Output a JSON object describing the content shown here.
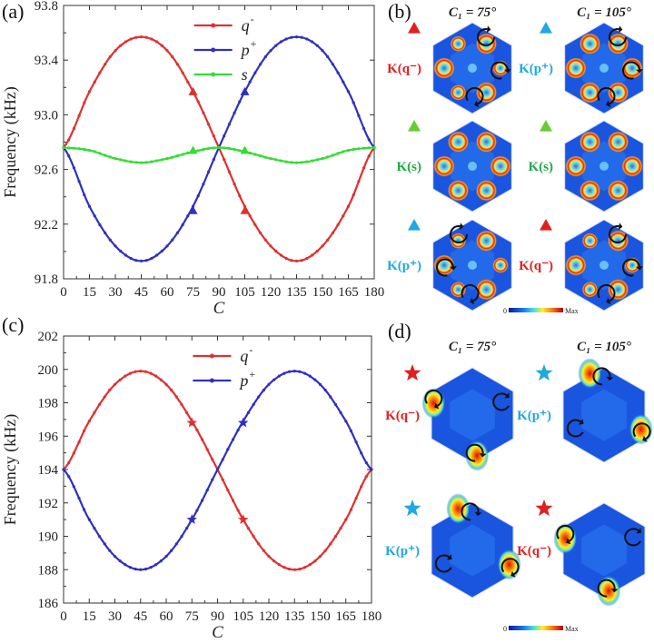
{
  "panel_labels": {
    "a": "(a)",
    "b": "(b)",
    "c": "(c)",
    "d": "(d)"
  },
  "chart_data": [
    {
      "id": "a",
      "type": "line",
      "ylabel": "Frequency (kHz)",
      "xlabel": "C",
      "xlim": [
        0,
        180
      ],
      "ylim": [
        91.8,
        93.8
      ],
      "xticks": [
        0,
        15,
        30,
        45,
        60,
        75,
        90,
        105,
        120,
        135,
        150,
        165,
        180
      ],
      "yticks": [
        91.8,
        92.2,
        92.6,
        93.0,
        93.4,
        93.8
      ],
      "ytick_labels": [
        "91.8",
        "92.2",
        "92.6",
        "93.0",
        "93.4",
        "93.8"
      ],
      "legend_position": "top-center",
      "series": [
        {
          "name": "q",
          "sup": "-",
          "color": "#e03030",
          "x": [
            0,
            15,
            30,
            45,
            60,
            75,
            90,
            105,
            120,
            135,
            150,
            165,
            180
          ],
          "values": [
            92.76,
            93.17,
            93.47,
            93.57,
            93.47,
            93.17,
            92.76,
            92.33,
            92.04,
            91.93,
            92.04,
            92.33,
            92.76
          ]
        },
        {
          "name": "p",
          "sup": "+",
          "color": "#3030c0",
          "x": [
            0,
            15,
            30,
            45,
            60,
            75,
            90,
            105,
            120,
            135,
            150,
            165,
            180
          ],
          "values": [
            92.76,
            92.33,
            92.04,
            91.93,
            92.04,
            92.33,
            92.76,
            93.17,
            93.47,
            93.57,
            93.47,
            93.17,
            92.76
          ]
        },
        {
          "name": "s",
          "sup": "",
          "color": "#33dd33",
          "x": [
            0,
            15,
            30,
            45,
            60,
            75,
            90,
            105,
            120,
            135,
            150,
            165,
            180
          ],
          "values": [
            92.76,
            92.74,
            92.68,
            92.65,
            92.68,
            92.73,
            92.76,
            92.73,
            92.68,
            92.65,
            92.68,
            92.74,
            92.76
          ]
        }
      ],
      "markers": [
        {
          "series": "q",
          "x": 75,
          "y": 93.17,
          "shape": "triangle",
          "color": "#e03030"
        },
        {
          "series": "q",
          "x": 105,
          "y": 92.3,
          "shape": "triangle",
          "color": "#e03030"
        },
        {
          "series": "p",
          "x": 75,
          "y": 92.3,
          "shape": "triangle",
          "color": "#3030c0"
        },
        {
          "series": "p",
          "x": 105,
          "y": 93.17,
          "shape": "triangle",
          "color": "#3030c0"
        },
        {
          "series": "s",
          "x": 75,
          "y": 92.74,
          "shape": "triangle",
          "color": "#33dd33"
        },
        {
          "series": "s",
          "x": 105,
          "y": 92.74,
          "shape": "triangle",
          "color": "#33dd33"
        }
      ]
    },
    {
      "id": "c",
      "type": "line",
      "ylabel": "Frequency (kHz)",
      "xlabel": "C",
      "xlim": [
        0,
        180
      ],
      "ylim": [
        186,
        202
      ],
      "xticks": [
        0,
        15,
        30,
        45,
        60,
        75,
        90,
        105,
        120,
        135,
        150,
        165,
        180
      ],
      "yticks": [
        186,
        188,
        190,
        192,
        194,
        196,
        198,
        200,
        202
      ],
      "ytick_labels": [
        "186",
        "188",
        "190",
        "192",
        "194",
        "196",
        "198",
        "200",
        "202"
      ],
      "legend_position": "top-center",
      "series": [
        {
          "name": "q",
          "sup": "-",
          "color": "#e03030",
          "x": [
            0,
            15,
            30,
            45,
            60,
            75,
            90,
            105,
            120,
            135,
            150,
            165,
            180
          ],
          "values": [
            194.0,
            196.9,
            199.1,
            199.9,
            199.1,
            196.9,
            194.0,
            191.0,
            188.8,
            188.0,
            188.8,
            191.0,
            194.0
          ]
        },
        {
          "name": "p",
          "sup": "+",
          "color": "#3030c0",
          "x": [
            0,
            15,
            30,
            45,
            60,
            75,
            90,
            105,
            120,
            135,
            150,
            165,
            180
          ],
          "values": [
            194.0,
            191.0,
            188.8,
            188.0,
            188.8,
            191.0,
            194.0,
            196.9,
            199.1,
            199.9,
            199.1,
            196.9,
            194.0
          ]
        }
      ],
      "markers": [
        {
          "series": "q",
          "x": 75,
          "y": 196.8,
          "shape": "star",
          "color": "#e03030"
        },
        {
          "series": "q",
          "x": 105,
          "y": 191.0,
          "shape": "star",
          "color": "#e03030"
        },
        {
          "series": "p",
          "x": 75,
          "y": 191.0,
          "shape": "star",
          "color": "#3030c0"
        },
        {
          "series": "p",
          "x": 105,
          "y": 196.8,
          "shape": "star",
          "color": "#3030c0"
        }
      ]
    }
  ],
  "field_panels": [
    {
      "id": "b",
      "col_titles": [
        "C₁ = 75°",
        "C₁ = 105°"
      ],
      "colorbar": {
        "min": "0",
        "max": "Max"
      },
      "field_style": "rings",
      "rows": [
        [
          {
            "label": "K(q⁻)",
            "label_color": "#e02020",
            "marker": "triangle",
            "marker_color": "#e02020"
          },
          {
            "label": "K(p⁺)",
            "label_color": "#20a8e0",
            "marker": "triangle",
            "marker_color": "#20a8e0"
          }
        ],
        [
          {
            "label": "K(s)",
            "label_color": "#22aa44",
            "marker": "triangle",
            "marker_color": "#66cc33"
          },
          {
            "label": "K(s)",
            "label_color": "#22aa44",
            "marker": "triangle",
            "marker_color": "#66cc33"
          }
        ],
        [
          {
            "label": "K(p⁺)",
            "label_color": "#20a8e0",
            "marker": "triangle",
            "marker_color": "#20a8e0"
          },
          {
            "label": "K(q⁻)",
            "label_color": "#e02020",
            "marker": "triangle",
            "marker_color": "#e02020"
          }
        ]
      ]
    },
    {
      "id": "d",
      "col_titles": [
        "C₁ = 75°",
        "C₁ = 105°"
      ],
      "colorbar": {
        "min": "0",
        "max": "Max"
      },
      "field_style": "corners",
      "rows": [
        [
          {
            "label": "K(q⁻)",
            "label_color": "#e02020",
            "marker": "star",
            "marker_color": "#e02020"
          },
          {
            "label": "K(p⁺)",
            "label_color": "#20a8e0",
            "marker": "star",
            "marker_color": "#20a8e0"
          }
        ],
        [
          {
            "label": "K(p⁺)",
            "label_color": "#20a8e0",
            "marker": "star",
            "marker_color": "#20a8e0"
          },
          {
            "label": "K(q⁻)",
            "label_color": "#e02020",
            "marker": "star",
            "marker_color": "#e02020"
          }
        ]
      ]
    }
  ]
}
